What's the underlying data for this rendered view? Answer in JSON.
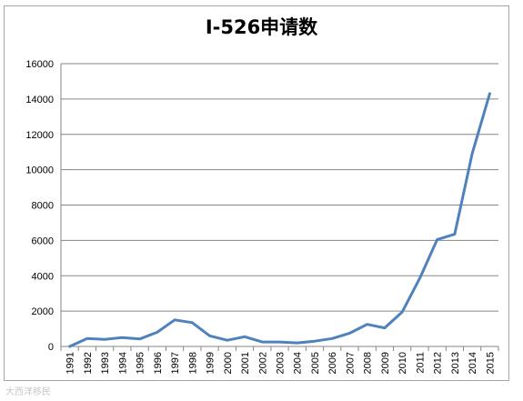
{
  "chart_data": {
    "type": "line",
    "title": "I-526申请数",
    "xlabel": "",
    "ylabel": "",
    "x": [
      "1991",
      "1992",
      "1993",
      "1994",
      "1995",
      "1996",
      "1997",
      "1998",
      "1999",
      "2000",
      "2001",
      "2002",
      "2003",
      "2004",
      "2005",
      "2006",
      "2007",
      "2008",
      "2009",
      "2010",
      "2011",
      "2012",
      "2013",
      "2014",
      "2015"
    ],
    "series": [
      {
        "values": [
          0,
          450,
          400,
          500,
          420,
          800,
          1500,
          1350,
          600,
          350,
          550,
          250,
          250,
          200,
          300,
          450,
          750,
          1250,
          1050,
          1950,
          3850,
          6050,
          6350,
          10900,
          14300
        ],
        "color": "#4f81bd"
      }
    ],
    "ylim": [
      0,
      16000
    ],
    "yticks": [
      0,
      2000,
      4000,
      6000,
      8000,
      10000,
      12000,
      14000,
      16000
    ],
    "ytick_labels": [
      "0",
      "2000",
      "4000",
      "6000",
      "8000",
      "10000",
      "12000",
      "14000",
      "16000"
    ],
    "grid": true,
    "legend": "none"
  },
  "watermark": "大西洋移民"
}
